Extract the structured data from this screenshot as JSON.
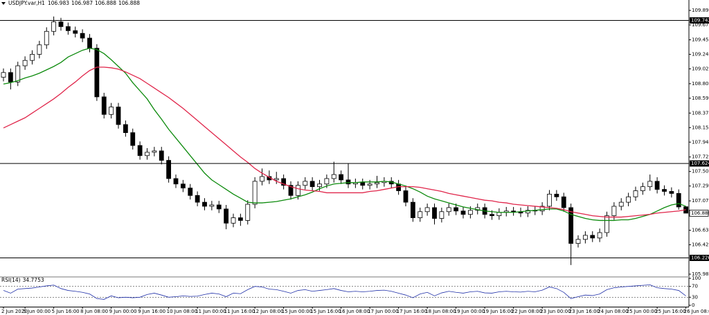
{
  "chart_data": {
    "type": "candlestick",
    "symbol": "USDJPY.var,H1",
    "categories": [
      "2 Jun 2020",
      null,
      null,
      "5 Jun 00:00",
      null,
      null,
      null,
      "5 Jun 16:00",
      null,
      null,
      null,
      "8 Jun 08:00",
      null,
      null,
      null,
      "9 Jun 00:00",
      null,
      null,
      null,
      "9 Jun 16:00",
      null,
      null,
      null,
      "10 Jun 08:00",
      null,
      null,
      null,
      "11 Jun 00:00",
      null,
      null,
      null,
      "11 Jun 16:00",
      null,
      null,
      null,
      "12 Jun 08:00",
      null,
      null,
      null,
      "15 Jun 00:00",
      null,
      null,
      null,
      "15 Jun 16:00",
      null,
      null,
      null,
      "16 Jun 08:00",
      null,
      null,
      null,
      "17 Jun 00:00",
      null,
      null,
      null,
      "17 Jun 16:00",
      null,
      null,
      null,
      "18 Jun 08:00",
      null,
      null,
      null,
      "19 Jun 00:00",
      null,
      null,
      null,
      "19 Jun 16:00",
      null,
      null,
      null,
      "22 Jun 08:00",
      null,
      null,
      null,
      "23 Jun 00:00",
      null,
      null,
      null,
      "23 Jun 16:00",
      null,
      null,
      null,
      "24 Jun 08:00",
      null,
      null,
      null,
      "25 Jun 00:00",
      null,
      null,
      null,
      "25 Jun 16:00",
      null,
      null,
      null,
      "26 Jun 08:00"
    ],
    "open": [
      108.9,
      108.97,
      108.83,
      109.07,
      109.15,
      109.24,
      109.38,
      109.58,
      109.72,
      109.65,
      109.59,
      109.55,
      109.48,
      109.33,
      108.61,
      108.35,
      108.46,
      108.2,
      108.08,
      107.89,
      107.74,
      107.79,
      107.81,
      107.67,
      107.4,
      107.32,
      107.26,
      107.15,
      107.05,
      106.99,
      107.01,
      106.95,
      106.74,
      106.82,
      106.78,
      107.02,
      107.36,
      107.43,
      107.38,
      107.4,
      107.3,
      107.15,
      107.3,
      107.36,
      107.28,
      107.32,
      107.4,
      107.46,
      107.38,
      107.32,
      107.34,
      107.3,
      107.32,
      107.34,
      107.36,
      107.32,
      107.22,
      107.05,
      106.82,
      106.91,
      106.97,
      106.81,
      106.91,
      106.97,
      106.92,
      106.87,
      106.93,
      106.97,
      106.87,
      106.85,
      106.9,
      106.92,
      106.91,
      106.89,
      106.93,
      106.92,
      106.99,
      107.17,
      107.13,
      106.97,
      106.44,
      106.5,
      106.56,
      106.52,
      106.6,
      106.85,
      106.99,
      107.05,
      107.13,
      107.22,
      107.28,
      107.36,
      107.24,
      107.21,
      107.18,
      106.983
    ],
    "high": [
      109.03,
      109.03,
      109.13,
      109.21,
      109.3,
      109.44,
      109.64,
      109.8,
      109.78,
      109.71,
      109.65,
      109.61,
      109.54,
      109.39,
      108.67,
      108.52,
      108.52,
      108.26,
      108.14,
      107.95,
      107.85,
      107.87,
      107.87,
      107.73,
      107.46,
      107.38,
      107.32,
      107.21,
      107.11,
      107.07,
      107.07,
      107.01,
      106.88,
      106.88,
      107.08,
      107.42,
      107.55,
      107.52,
      107.5,
      107.46,
      107.36,
      107.36,
      107.42,
      107.42,
      107.38,
      107.46,
      107.65,
      107.52,
      107.62,
      107.4,
      107.4,
      107.38,
      107.44,
      107.42,
      107.42,
      107.38,
      107.28,
      107.11,
      106.97,
      107.03,
      107.03,
      106.97,
      107.03,
      107.03,
      106.98,
      106.99,
      107.03,
      107.03,
      106.93,
      106.96,
      106.98,
      106.98,
      106.97,
      106.99,
      106.99,
      107.05,
      107.23,
      107.23,
      107.19,
      107.03,
      106.56,
      106.62,
      106.62,
      106.66,
      106.91,
      107.05,
      107.11,
      107.19,
      107.28,
      107.34,
      107.46,
      107.42,
      107.3,
      107.27,
      107.24,
      106.987
    ],
    "low": [
      108.84,
      108.72,
      108.77,
      109.01,
      109.09,
      109.18,
      109.32,
      109.52,
      109.59,
      109.53,
      109.49,
      109.42,
      109.27,
      108.55,
      108.29,
      108.29,
      108.14,
      108.02,
      107.83,
      107.68,
      107.68,
      107.73,
      107.61,
      107.34,
      107.26,
      107.2,
      107.09,
      106.99,
      106.93,
      106.93,
      106.89,
      106.65,
      106.68,
      106.7,
      106.72,
      106.96,
      107.3,
      107.32,
      107.32,
      107.24,
      107.09,
      107.09,
      107.24,
      107.22,
      107.22,
      107.26,
      107.34,
      107.32,
      107.26,
      107.26,
      107.24,
      107.24,
      107.26,
      107.28,
      107.26,
      107.16,
      106.99,
      106.76,
      106.76,
      106.85,
      106.72,
      106.75,
      106.85,
      106.86,
      106.81,
      106.81,
      106.87,
      106.81,
      106.79,
      106.79,
      106.84,
      106.85,
      106.83,
      106.83,
      106.86,
      106.86,
      106.93,
      107.07,
      106.91,
      106.12,
      106.38,
      106.44,
      106.46,
      106.46,
      106.54,
      106.79,
      106.93,
      106.99,
      107.07,
      107.16,
      107.22,
      107.18,
      107.15,
      107.12,
      106.94,
      106.888
    ],
    "close": [
      108.97,
      108.83,
      109.07,
      109.15,
      109.24,
      109.38,
      109.58,
      109.72,
      109.65,
      109.59,
      109.55,
      109.48,
      109.33,
      108.61,
      108.35,
      108.46,
      108.2,
      108.08,
      107.89,
      107.74,
      107.79,
      107.81,
      107.67,
      107.4,
      107.32,
      107.26,
      107.15,
      107.05,
      106.99,
      107.01,
      106.95,
      106.74,
      106.82,
      106.78,
      107.02,
      107.36,
      107.43,
      107.38,
      107.4,
      107.3,
      107.15,
      107.3,
      107.36,
      107.28,
      107.32,
      107.4,
      107.46,
      107.38,
      107.32,
      107.34,
      107.3,
      107.32,
      107.34,
      107.36,
      107.32,
      107.22,
      107.05,
      106.82,
      106.91,
      106.97,
      106.81,
      106.91,
      106.97,
      106.92,
      106.87,
      106.93,
      106.97,
      106.87,
      106.85,
      106.9,
      106.92,
      106.91,
      106.89,
      106.93,
      106.92,
      106.99,
      107.17,
      107.13,
      106.97,
      106.44,
      106.5,
      106.56,
      106.52,
      106.6,
      106.85,
      106.99,
      107.05,
      107.13,
      107.22,
      107.28,
      107.36,
      107.24,
      107.21,
      107.18,
      106.98,
      106.888
    ],
    "series": [
      {
        "color": "#0c8a0c",
        "values": [
          108.8,
          108.82,
          108.85,
          108.89,
          108.92,
          108.96,
          109.01,
          109.06,
          109.12,
          109.2,
          109.25,
          109.3,
          109.33,
          109.31,
          109.25,
          109.16,
          109.06,
          108.96,
          108.82,
          108.7,
          108.58,
          108.42,
          108.28,
          108.13,
          108.0,
          107.87,
          107.74,
          107.61,
          107.48,
          107.38,
          107.31,
          107.24,
          107.17,
          107.11,
          107.05,
          107.04,
          107.04,
          107.05,
          107.06,
          107.08,
          107.1,
          107.13,
          107.16,
          107.2,
          107.25,
          107.29,
          107.32,
          107.33,
          107.34,
          107.34,
          107.35,
          107.35,
          107.35,
          107.36,
          107.35,
          107.32,
          107.29,
          107.25,
          107.2,
          107.14,
          107.1,
          107.07,
          107.04,
          107.01,
          106.98,
          106.96,
          106.94,
          106.92,
          106.91,
          106.9,
          106.9,
          106.9,
          106.91,
          106.92,
          106.93,
          106.94,
          106.95,
          106.95,
          106.92,
          106.87,
          106.84,
          106.81,
          106.79,
          106.78,
          106.78,
          106.78,
          106.79,
          106.79,
          106.81,
          106.84,
          106.87,
          106.92,
          106.97,
          107.01,
          107.03,
          106.99
        ]
      },
      {
        "color": "#e0254a",
        "values": [
          108.15,
          108.2,
          108.25,
          108.3,
          108.37,
          108.44,
          108.51,
          108.58,
          108.66,
          108.75,
          108.83,
          108.92,
          109.0,
          109.05,
          109.05,
          109.04,
          109.02,
          108.98,
          108.93,
          108.88,
          108.81,
          108.74,
          108.67,
          108.6,
          108.52,
          108.44,
          108.35,
          108.26,
          108.17,
          108.08,
          107.99,
          107.9,
          107.81,
          107.72,
          107.64,
          107.55,
          107.48,
          107.42,
          107.36,
          107.32,
          107.28,
          107.25,
          107.23,
          107.22,
          107.21,
          107.19,
          107.19,
          107.19,
          107.19,
          107.19,
          107.19,
          107.21,
          107.22,
          107.24,
          107.26,
          107.28,
          107.28,
          107.28,
          107.27,
          107.25,
          107.23,
          107.21,
          107.18,
          107.16,
          107.14,
          107.12,
          107.1,
          107.08,
          107.07,
          107.05,
          107.04,
          107.02,
          107.01,
          107.0,
          106.99,
          106.98,
          106.97,
          106.96,
          106.94,
          106.91,
          106.89,
          106.87,
          106.85,
          106.84,
          106.83,
          106.83,
          106.83,
          106.84,
          106.85,
          106.86,
          106.87,
          106.89,
          106.9,
          106.91,
          106.92,
          106.94
        ]
      }
    ],
    "ylim": [
      105.944,
      109.962
    ],
    "yticks": [
      {
        "value": 109.89,
        "label": "109.890"
      },
      109.675,
      109.455,
      {
        "value": 109.24,
        "label": "109.240"
      },
      109.025,
      108.805,
      {
        "value": 108.59,
        "label": "108.590"
      },
      {
        "value": 108.37,
        "label": "108.370"
      },
      108.155,
      {
        "value": 107.94,
        "label": "107.940"
      },
      {
        "value": 107.72,
        "label": "107.720"
      },
      107.505,
      {
        "value": 107.29,
        "label": "107.290"
      },
      {
        "value": 107.07,
        "label": "107.070"
      },
      106.635,
      {
        "value": 106.42,
        "label": "106.420"
      },
      105.985
    ],
    "levels": [
      109.742,
      107.624,
      106.226
    ],
    "rsi": {
      "name": "RSI(14)",
      "color": "#1f2fa8",
      "values": [
        55,
        45,
        60,
        62,
        64,
        68,
        72,
        75,
        62,
        55,
        52,
        48,
        42,
        25,
        22,
        35,
        28,
        30,
        28,
        30,
        40,
        45,
        38,
        30,
        32,
        35,
        33,
        34,
        40,
        45,
        42,
        32,
        45,
        43,
        58,
        70,
        68,
        60,
        58,
        52,
        45,
        55,
        58,
        52,
        55,
        58,
        62,
        55,
        50,
        52,
        50,
        52,
        55,
        56,
        52,
        45,
        38,
        28,
        42,
        48,
        35,
        46,
        52,
        48,
        45,
        50,
        52,
        46,
        45,
        50,
        52,
        50,
        49,
        52,
        50,
        56,
        68,
        62,
        48,
        25,
        32,
        38,
        36,
        42,
        58,
        65,
        68,
        70,
        72,
        74,
        76,
        65,
        62,
        60,
        55,
        34.7753
      ],
      "ylim": [
        0,
        100
      ],
      "yticks": [
        100,
        70,
        30,
        0
      ],
      "levels": [
        70,
        30
      ]
    }
  }
}
